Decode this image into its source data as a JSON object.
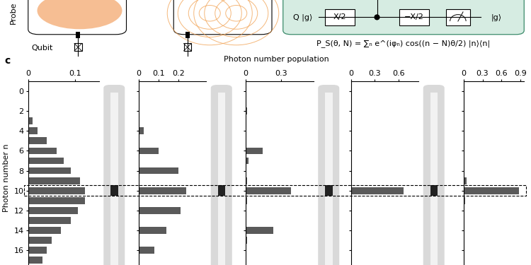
{
  "texts": {
    "panel_label": "c",
    "x_label": "Photon number population",
    "y_label": "Photon number n",
    "probe": "Probe",
    "qubit": "Qubit",
    "circuit": {
      "input": "Q |g⟩",
      "gate1": "X/2",
      "gate2": "−X/2",
      "output": "|g⟩"
    },
    "formula": "P_S(θ, N) = ∑ₙ e^(iφₙ) cos((n − N)θ/2) |n⟩⟨n|"
  },
  "target_photon_number": 10,
  "chart_data": [
    {
      "type": "bar",
      "orientation": "horizontal",
      "color": "#5a5a5a",
      "x": [
        0,
        1,
        2,
        3,
        4,
        5,
        6,
        7,
        8,
        9,
        10,
        11,
        12,
        13,
        14,
        15,
        16,
        17
      ],
      "values": [
        0,
        0,
        0.002,
        0.01,
        0.02,
        0.04,
        0.06,
        0.075,
        0.09,
        0.11,
        0.12,
        0.12,
        0.105,
        0.09,
        0.07,
        0.05,
        0.04,
        0.03
      ],
      "xlim": [
        0,
        0.15
      ],
      "xticks": [
        0,
        0.1
      ],
      "ylim": [
        17.5,
        -1
      ],
      "yticks": [
        0,
        2,
        4,
        6,
        8,
        10,
        12,
        14,
        16
      ]
    },
    {
      "type": "bar",
      "orientation": "horizontal",
      "color": "#5a5a5a",
      "tick_labels": "x",
      "x": [
        0,
        1,
        2,
        3,
        4,
        5,
        6,
        7,
        8,
        9,
        10,
        11,
        12,
        13,
        14,
        15,
        16,
        17
      ],
      "values": [
        0,
        0,
        0.003,
        0,
        0.025,
        0.005,
        0.1,
        0.005,
        0.2,
        0.005,
        0.24,
        0.005,
        0.21,
        0.005,
        0.14,
        0.005,
        0.08,
        0
      ],
      "xlim": [
        0,
        0.34
      ],
      "xticks": [
        0,
        0.1,
        0.2
      ],
      "ylim": [
        17.5,
        -1
      ],
      "yticks": [
        0,
        2,
        4,
        6,
        8,
        10,
        12,
        14,
        16
      ]
    },
    {
      "type": "bar",
      "orientation": "horizontal",
      "color": "#5a5a5a",
      "tick_labels": "x",
      "x": [
        0,
        1,
        2,
        3,
        4,
        5,
        6,
        7,
        8,
        9,
        10,
        11,
        12,
        13,
        14,
        15,
        16,
        17
      ],
      "values": [
        0,
        0,
        0.01,
        0,
        0,
        0,
        0.14,
        0.02,
        0,
        0.01,
        0.38,
        0.01,
        0,
        0,
        0.23,
        0.01,
        0,
        0
      ],
      "xlim": [
        0,
        0.57
      ],
      "xticks": [
        0,
        0.3
      ],
      "ylim": [
        17.5,
        -1
      ],
      "yticks": [
        0,
        2,
        4,
        6,
        8,
        10,
        12,
        14,
        16
      ]
    },
    {
      "type": "bar",
      "orientation": "horizontal",
      "color": "#5a5a5a",
      "tick_labels": "x",
      "x": [
        0,
        1,
        2,
        3,
        4,
        5,
        6,
        7,
        8,
        9,
        10,
        11,
        12,
        13,
        14,
        15,
        16,
        17
      ],
      "values": [
        0,
        0,
        0.005,
        0,
        0,
        0,
        0.01,
        0,
        0,
        0.01,
        0.66,
        0.01,
        0,
        0,
        0.01,
        0,
        0,
        0
      ],
      "xlim": [
        0,
        0.85
      ],
      "xticks": [
        0,
        0.3,
        0.6
      ],
      "ylim": [
        17.5,
        -1
      ],
      "yticks": [
        0,
        2,
        4,
        6,
        8,
        10,
        12,
        14,
        16
      ]
    },
    {
      "type": "bar",
      "orientation": "horizontal",
      "color": "#5a5a5a",
      "tick_labels": "x",
      "x": [
        0,
        1,
        2,
        3,
        4,
        5,
        6,
        7,
        8,
        9,
        10,
        11,
        12,
        13,
        14,
        15,
        16,
        17
      ],
      "values": [
        0,
        0,
        0,
        0,
        0,
        0,
        0,
        0,
        0,
        0.05,
        0.88,
        0.03,
        0,
        0,
        0,
        0,
        0,
        0
      ],
      "xlim": [
        0,
        0.95
      ],
      "xticks": [
        0,
        0.3,
        0.6,
        0.9
      ],
      "ylim": [
        17.5,
        -1
      ],
      "yticks": [
        0,
        2,
        4,
        6,
        8,
        10,
        12,
        14,
        16
      ]
    }
  ]
}
